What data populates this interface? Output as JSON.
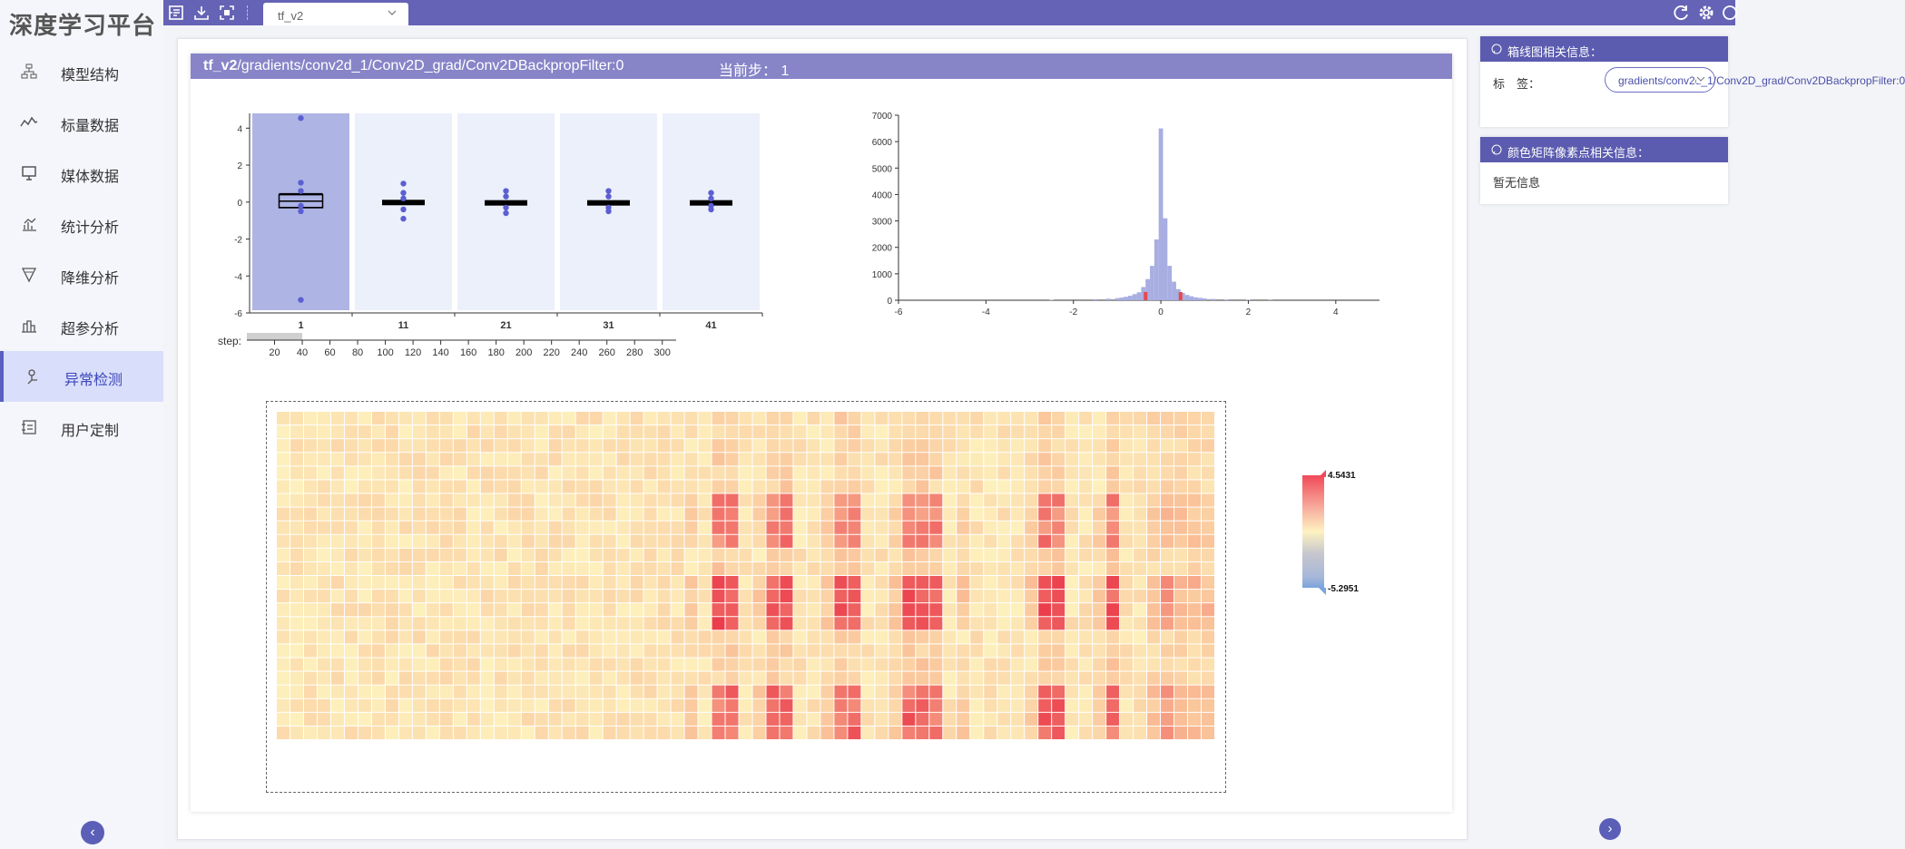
{
  "app": {
    "logo": "深度学习平台"
  },
  "sidebar": {
    "items": [
      {
        "label": "模型结构",
        "icon": "model-structure-icon"
      },
      {
        "label": "标量数据",
        "icon": "scalar-line-icon"
      },
      {
        "label": "媒体数据",
        "icon": "media-monitor-icon"
      },
      {
        "label": "统计分析",
        "icon": "statistics-chart-icon"
      },
      {
        "label": "降维分析",
        "icon": "dimension-reduce-icon"
      },
      {
        "label": "超参分析",
        "icon": "hyperparam-icon"
      },
      {
        "label": "异常检测",
        "icon": "anomaly-detect-icon",
        "active": true
      },
      {
        "label": "用户定制",
        "icon": "user-custom-icon"
      }
    ]
  },
  "topbar": {
    "tab_label": "tf_v2",
    "icons": [
      "import-icon",
      "download-icon",
      "fullscreen-icon",
      "refresh-icon",
      "settings-icon",
      "help-icon"
    ]
  },
  "header": {
    "run": "tf_v2",
    "path": "/gradients/conv2d_1/Conv2D_grad/Conv2DBackpropFilter:0",
    "step_text": "当前步： 1"
  },
  "right_panel": {
    "box_title": "箱线图相关信息：",
    "tag_label": "标　签：",
    "tag_value": "gradients/conv2d_1/Conv2D_grad/Conv2DBackpropFilter:0",
    "pixel_title": "颜色矩阵像素点相关信息：",
    "pixel_info": "暂无信息"
  },
  "colors": {
    "accent": "#6563b5",
    "header": "#8785c8",
    "box_fill_active": "#aeb4e4",
    "box_fill": "#ecf0fb",
    "dot": "#5b5fd1",
    "hist_fill": "#a8aee2",
    "marker": "#e8484f"
  },
  "chart_data": [
    {
      "type": "box",
      "categories": [
        "1",
        "11",
        "21",
        "31",
        "41"
      ],
      "selected": "1",
      "ylim": [
        -6,
        4.8
      ],
      "yticks": [
        4,
        2,
        0,
        -2,
        -4,
        -6
      ],
      "boxes": [
        {
          "q1": -0.3,
          "median": 0.05,
          "q3": 0.4,
          "whisker_low": -0.3,
          "whisker_high": 0.45,
          "outliers": [
            4.5431,
            1.05,
            0.6,
            -0.2,
            -0.5,
            -5.2951
          ]
        },
        {
          "q1": -0.05,
          "median": 0.0,
          "q3": 0.05,
          "whisker_low": -0.05,
          "whisker_high": 0.05,
          "outliers": [
            1.0,
            0.5,
            0.2,
            -0.4,
            -0.9
          ]
        },
        {
          "q1": -0.03,
          "median": 0.0,
          "q3": 0.03,
          "whisker_low": -0.03,
          "whisker_high": 0.03,
          "outliers": [
            0.6,
            0.3,
            -0.3,
            -0.6
          ]
        },
        {
          "q1": -0.03,
          "median": 0.0,
          "q3": 0.03,
          "whisker_low": -0.03,
          "whisker_high": 0.03,
          "outliers": [
            0.6,
            0.3,
            -0.3,
            -0.5
          ]
        },
        {
          "q1": -0.03,
          "median": 0.0,
          "q3": 0.03,
          "whisker_low": -0.03,
          "whisker_high": 0.03,
          "outliers": [
            0.5,
            0.2,
            -0.2,
            -0.4
          ]
        }
      ]
    },
    {
      "type": "slider_axis",
      "label": "step:",
      "ticks": [
        20,
        40,
        60,
        80,
        100,
        120,
        140,
        160,
        180,
        200,
        220,
        240,
        260,
        280,
        300
      ],
      "range": [
        0,
        310
      ],
      "brush": [
        0,
        40
      ]
    },
    {
      "type": "histogram",
      "xlim": [
        -6,
        5
      ],
      "ylim": [
        0,
        7000
      ],
      "xticks": [
        -6,
        -4,
        -2,
        0,
        2,
        4
      ],
      "yticks": [
        0,
        1000,
        2000,
        3000,
        4000,
        5000,
        6000,
        7000
      ],
      "bin_centers": [
        -2.5,
        -1.5,
        -1.2,
        -1.0,
        -0.9,
        -0.8,
        -0.7,
        -0.6,
        -0.5,
        -0.4,
        -0.3,
        -0.2,
        -0.1,
        0.0,
        0.1,
        0.2,
        0.3,
        0.4,
        0.5,
        0.6,
        0.7,
        0.8,
        0.9,
        1.0,
        1.2,
        1.5,
        2.0,
        2.5
      ],
      "counts": [
        20,
        40,
        60,
        80,
        100,
        130,
        170,
        230,
        300,
        500,
        800,
        1300,
        2300,
        6500,
        3100,
        1300,
        700,
        420,
        280,
        200,
        150,
        110,
        90,
        70,
        50,
        30,
        20,
        10
      ],
      "markers": [
        -0.35,
        0.45
      ]
    },
    {
      "type": "heatmap",
      "rows": 24,
      "cols": 69,
      "vmin": -5.2951,
      "vmax": 4.5431
    }
  ]
}
